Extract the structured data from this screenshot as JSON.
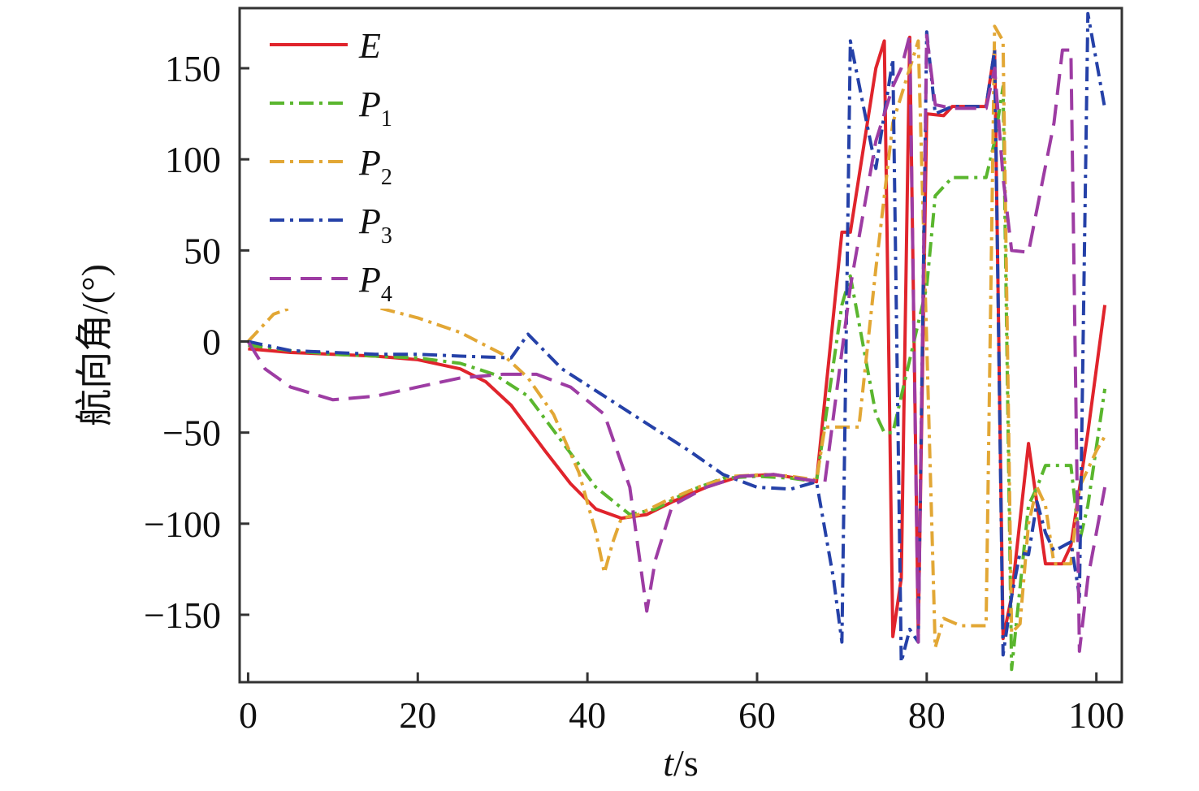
{
  "chart_data": {
    "type": "line",
    "xlabel_italic": "t",
    "xlabel_rest": "/s",
    "ylabel": "航向角/(°)",
    "xlim": [
      -1,
      103
    ],
    "ylim": [
      -187,
      183
    ],
    "xticks": [
      0,
      20,
      40,
      60,
      80,
      100
    ],
    "yticks": [
      -150,
      -100,
      -50,
      0,
      50,
      100,
      150
    ],
    "ytick_labels": [
      "−150",
      "−100",
      "−50",
      "0",
      "50",
      "100",
      "150"
    ],
    "grid": false,
    "legend_position": "top-left",
    "series": [
      {
        "name": "E",
        "sub": "",
        "color": "#e0242c",
        "dash": "",
        "points": [
          [
            0,
            -4
          ],
          [
            5,
            -6
          ],
          [
            10,
            -7
          ],
          [
            15,
            -8
          ],
          [
            20,
            -10
          ],
          [
            25,
            -15
          ],
          [
            28,
            -22
          ],
          [
            31,
            -35
          ],
          [
            35,
            -60
          ],
          [
            38,
            -78
          ],
          [
            41,
            -92
          ],
          [
            44,
            -97
          ],
          [
            47,
            -95
          ],
          [
            50,
            -88
          ],
          [
            54,
            -80
          ],
          [
            58,
            -74
          ],
          [
            62,
            -73
          ],
          [
            66,
            -76
          ],
          [
            67,
            -77
          ],
          [
            70,
            60
          ],
          [
            71,
            60
          ],
          [
            74,
            150
          ],
          [
            75,
            165
          ],
          [
            76,
            -162
          ],
          [
            77,
            -130
          ],
          [
            78,
            167
          ],
          [
            79,
            -160
          ],
          [
            80,
            125
          ],
          [
            82,
            124
          ],
          [
            83,
            129
          ],
          [
            86,
            129
          ],
          [
            87,
            129
          ],
          [
            88,
            160
          ],
          [
            89,
            -163
          ],
          [
            90,
            -140
          ],
          [
            92,
            -56
          ],
          [
            94,
            -122
          ],
          [
            96,
            -122
          ],
          [
            97,
            -112
          ],
          [
            99,
            -50
          ],
          [
            101,
            20
          ]
        ]
      },
      {
        "name": "P",
        "sub": "1",
        "color": "#5ab62e",
        "dash": "18,7,4,7",
        "points": [
          [
            0,
            -2
          ],
          [
            5,
            -5
          ],
          [
            10,
            -7
          ],
          [
            15,
            -8
          ],
          [
            20,
            -9
          ],
          [
            25,
            -12
          ],
          [
            29,
            -18
          ],
          [
            33,
            -30
          ],
          [
            37,
            -55
          ],
          [
            41,
            -80
          ],
          [
            45,
            -95
          ],
          [
            48,
            -92
          ],
          [
            52,
            -82
          ],
          [
            56,
            -75
          ],
          [
            60,
            -74
          ],
          [
            64,
            -75
          ],
          [
            67,
            -77
          ],
          [
            70,
            20
          ],
          [
            71,
            36
          ],
          [
            74,
            -40
          ],
          [
            75,
            -50
          ],
          [
            76,
            -50
          ],
          [
            78,
            -10
          ],
          [
            80,
            30
          ],
          [
            81,
            80
          ],
          [
            83,
            90
          ],
          [
            85,
            90
          ],
          [
            87,
            90
          ],
          [
            88,
            110
          ],
          [
            89,
            140
          ],
          [
            90,
            -180
          ],
          [
            92,
            -90
          ],
          [
            93,
            -80
          ],
          [
            94,
            -68
          ],
          [
            96,
            -68
          ],
          [
            97,
            -68
          ],
          [
            98,
            -110
          ],
          [
            99,
            -90
          ],
          [
            101,
            -26
          ]
        ]
      },
      {
        "name": "P",
        "sub": "2",
        "color": "#e2a735",
        "dash": "18,7,4,7",
        "points": [
          [
            0,
            0
          ],
          [
            3,
            15
          ],
          [
            6,
            20
          ],
          [
            10,
            20
          ],
          [
            15,
            19
          ],
          [
            20,
            13
          ],
          [
            25,
            5
          ],
          [
            30,
            -7
          ],
          [
            33,
            -20
          ],
          [
            36,
            -40
          ],
          [
            39,
            -72
          ],
          [
            41,
            -105
          ],
          [
            42,
            -127
          ],
          [
            43,
            -110
          ],
          [
            44,
            -97
          ],
          [
            46,
            -95
          ],
          [
            49,
            -88
          ],
          [
            53,
            -80
          ],
          [
            57,
            -74
          ],
          [
            61,
            -73
          ],
          [
            64,
            -74
          ],
          [
            67,
            -76
          ],
          [
            68,
            -47
          ],
          [
            70,
            -47
          ],
          [
            72,
            -47
          ],
          [
            74,
            40
          ],
          [
            76,
            120
          ],
          [
            79,
            165
          ],
          [
            81,
            -168
          ],
          [
            82,
            -152
          ],
          [
            84,
            -156
          ],
          [
            87,
            -156
          ],
          [
            88,
            173
          ],
          [
            89,
            165
          ],
          [
            90,
            -160
          ],
          [
            91,
            -155
          ],
          [
            92,
            -100
          ],
          [
            93,
            -80
          ],
          [
            94,
            -90
          ],
          [
            95,
            -122
          ],
          [
            97,
            -122
          ],
          [
            98,
            -80
          ],
          [
            100,
            -60
          ],
          [
            101,
            -52
          ]
        ]
      },
      {
        "name": "P",
        "sub": "3",
        "color": "#2541a8",
        "dash": "18,7,4,7",
        "points": [
          [
            0,
            0
          ],
          [
            5,
            -5
          ],
          [
            10,
            -6
          ],
          [
            15,
            -7
          ],
          [
            20,
            -7
          ],
          [
            25,
            -8
          ],
          [
            31,
            -9
          ],
          [
            33,
            4
          ],
          [
            37,
            -15
          ],
          [
            42,
            -30
          ],
          [
            47,
            -45
          ],
          [
            52,
            -60
          ],
          [
            56,
            -73
          ],
          [
            60,
            -80
          ],
          [
            64,
            -81
          ],
          [
            67,
            -77
          ],
          [
            69,
            -130
          ],
          [
            70,
            -165
          ],
          [
            71,
            165
          ],
          [
            74,
            95
          ],
          [
            76,
            155
          ],
          [
            77,
            -176
          ],
          [
            78,
            -158
          ],
          [
            79,
            -165
          ],
          [
            80,
            170
          ],
          [
            81,
            125
          ],
          [
            83,
            129
          ],
          [
            87,
            129
          ],
          [
            88,
            160
          ],
          [
            89,
            -172
          ],
          [
            90,
            -140
          ],
          [
            91,
            -116
          ],
          [
            92,
            -117
          ],
          [
            93,
            -88
          ],
          [
            94,
            -105
          ],
          [
            95,
            -115
          ],
          [
            97,
            -110
          ],
          [
            98,
            -140
          ],
          [
            99,
            180
          ],
          [
            101,
            128
          ]
        ]
      },
      {
        "name": "P",
        "sub": "4",
        "color": "#9d3ca3",
        "dash": "26,12",
        "points": [
          [
            0,
            0
          ],
          [
            2,
            -15
          ],
          [
            5,
            -25
          ],
          [
            10,
            -32
          ],
          [
            15,
            -30
          ],
          [
            20,
            -25
          ],
          [
            25,
            -20
          ],
          [
            30,
            -18
          ],
          [
            34,
            -18
          ],
          [
            38,
            -25
          ],
          [
            42,
            -40
          ],
          [
            45,
            -80
          ],
          [
            47,
            -148
          ],
          [
            48,
            -120
          ],
          [
            50,
            -90
          ],
          [
            54,
            -80
          ],
          [
            58,
            -74
          ],
          [
            62,
            -73
          ],
          [
            66,
            -76
          ],
          [
            68,
            -77
          ],
          [
            71,
            30
          ],
          [
            74,
            110
          ],
          [
            76,
            140
          ],
          [
            77,
            150
          ],
          [
            78,
            168
          ],
          [
            79,
            -165
          ],
          [
            80,
            168
          ],
          [
            81,
            130
          ],
          [
            83,
            128
          ],
          [
            87,
            128
          ],
          [
            88,
            150
          ],
          [
            89,
            90
          ],
          [
            90,
            50
          ],
          [
            92,
            49
          ],
          [
            95,
            120
          ],
          [
            96,
            160
          ],
          [
            97,
            160
          ],
          [
            98,
            -170
          ],
          [
            99,
            -130
          ],
          [
            101,
            -80
          ]
        ]
      }
    ]
  }
}
